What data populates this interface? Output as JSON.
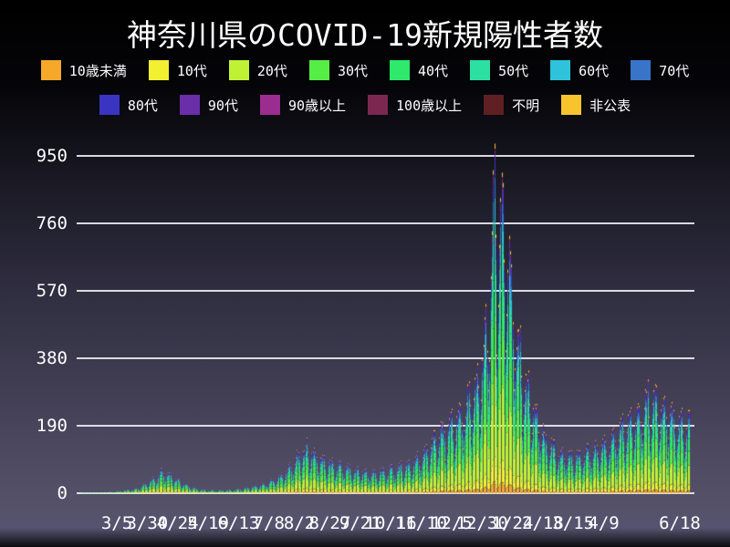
{
  "title": "神奈川県のCOVID-19新規陽性者数",
  "chart_data": {
    "type": "bar",
    "stacked": true,
    "title": "神奈川県のCOVID-19新規陽性者数",
    "xlabel": "",
    "ylabel": "",
    "ylim": [
      0,
      1000
    ],
    "y_ticks": [
      0,
      190,
      380,
      570,
      760,
      950
    ],
    "grid": true,
    "legend_position": "top",
    "x_tick_labels": [
      "3/5",
      "3/30",
      "4/24",
      "5/19",
      "6/13",
      "7/8",
      "8/2",
      "8/27",
      "9/21",
      "10/16",
      "11/10",
      "12/5",
      "12/30",
      "1/24",
      "2/18",
      "3/15",
      "4/9",
      "6/18"
    ],
    "start_date": "2020-02-05",
    "end_date": "2021-06-18",
    "series": [
      {
        "name": "10歳未満",
        "color": "#F6A82A",
        "fraction": 0.035
      },
      {
        "name": "10代",
        "color": "#F2F030",
        "fraction": 0.07
      },
      {
        "name": "20代",
        "color": "#BFF235",
        "fraction": 0.235
      },
      {
        "name": "30代",
        "color": "#56EE46",
        "fraction": 0.17
      },
      {
        "name": "40代",
        "color": "#2EE96B",
        "fraction": 0.15
      },
      {
        "name": "50代",
        "color": "#2CE0A2",
        "fraction": 0.115
      },
      {
        "name": "60代",
        "color": "#2FC3DB",
        "fraction": 0.07
      },
      {
        "name": "70代",
        "color": "#3875C9",
        "fraction": 0.058
      },
      {
        "name": "80代",
        "color": "#3A34C2",
        "fraction": 0.048
      },
      {
        "name": "90代",
        "color": "#6A2EA8",
        "fraction": 0.022
      },
      {
        "name": "90歳以上",
        "color": "#9B2C90",
        "fraction": 0.006
      },
      {
        "name": "100歳以上",
        "color": "#7B2850",
        "fraction": 0.002
      },
      {
        "name": "不明",
        "color": "#601F22",
        "fraction": 0.004
      },
      {
        "name": "非公表",
        "color": "#F9C32E",
        "fraction": 0.015
      }
    ],
    "daily_total_envelope": [
      [
        "2020-02-05",
        1
      ],
      [
        "2020-02-20",
        2
      ],
      [
        "2020-03-05",
        5
      ],
      [
        "2020-03-20",
        12
      ],
      [
        "2020-03-28",
        25
      ],
      [
        "2020-04-05",
        45
      ],
      [
        "2020-04-11",
        62
      ],
      [
        "2020-04-18",
        52
      ],
      [
        "2020-04-25",
        35
      ],
      [
        "2020-05-02",
        22
      ],
      [
        "2020-05-09",
        12
      ],
      [
        "2020-05-20",
        8
      ],
      [
        "2020-06-01",
        8
      ],
      [
        "2020-06-15",
        12
      ],
      [
        "2020-06-25",
        18
      ],
      [
        "2020-07-04",
        25
      ],
      [
        "2020-07-11",
        35
      ],
      [
        "2020-07-18",
        50
      ],
      [
        "2020-07-25",
        70
      ],
      [
        "2020-08-01",
        100
      ],
      [
        "2020-08-08",
        125
      ],
      [
        "2020-08-15",
        105
      ],
      [
        "2020-08-22",
        90
      ],
      [
        "2020-08-29",
        80
      ],
      [
        "2020-09-05",
        75
      ],
      [
        "2020-09-12",
        68
      ],
      [
        "2020-09-19",
        62
      ],
      [
        "2020-09-26",
        58
      ],
      [
        "2020-10-03",
        55
      ],
      [
        "2020-10-10",
        60
      ],
      [
        "2020-10-17",
        65
      ],
      [
        "2020-10-24",
        72
      ],
      [
        "2020-10-31",
        80
      ],
      [
        "2020-11-07",
        95
      ],
      [
        "2020-11-14",
        120
      ],
      [
        "2020-11-21",
        150
      ],
      [
        "2020-11-28",
        175
      ],
      [
        "2020-12-05",
        195
      ],
      [
        "2020-12-12",
        215
      ],
      [
        "2020-12-19",
        250
      ],
      [
        "2020-12-26",
        300
      ],
      [
        "2020-12-31",
        380
      ],
      [
        "2021-01-03",
        450
      ],
      [
        "2021-01-06",
        580
      ],
      [
        "2021-01-09",
        800
      ],
      [
        "2021-01-12",
        700
      ],
      [
        "2021-01-16",
        780
      ],
      [
        "2021-01-20",
        650
      ],
      [
        "2021-01-23",
        560
      ],
      [
        "2021-01-27",
        440
      ],
      [
        "2021-01-31",
        360
      ],
      [
        "2021-02-04",
        300
      ],
      [
        "2021-02-08",
        250
      ],
      [
        "2021-02-14",
        190
      ],
      [
        "2021-02-21",
        145
      ],
      [
        "2021-02-28",
        118
      ],
      [
        "2021-03-07",
        105
      ],
      [
        "2021-03-14",
        100
      ],
      [
        "2021-03-21",
        105
      ],
      [
        "2021-03-28",
        115
      ],
      [
        "2021-04-04",
        125
      ],
      [
        "2021-04-11",
        135
      ],
      [
        "2021-04-18",
        155
      ],
      [
        "2021-04-25",
        180
      ],
      [
        "2021-05-02",
        200
      ],
      [
        "2021-05-09",
        225
      ],
      [
        "2021-05-15",
        255
      ],
      [
        "2021-05-22",
        245
      ],
      [
        "2021-05-29",
        225
      ],
      [
        "2021-06-05",
        205
      ],
      [
        "2021-06-12",
        190
      ],
      [
        "2021-06-18",
        195
      ]
    ],
    "weekday_factors_sun_to_sat": [
      0.92,
      0.55,
      0.72,
      0.98,
      1.12,
      1.18,
      1.18
    ],
    "max_daily_value": 985
  }
}
